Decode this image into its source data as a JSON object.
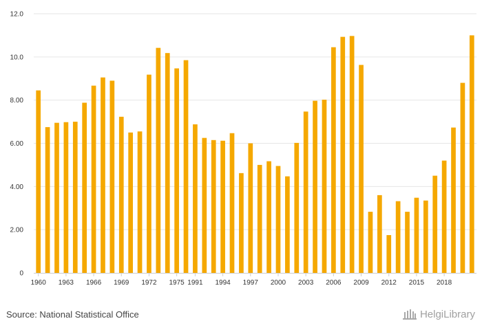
{
  "chart_data": {
    "type": "bar",
    "title": "",
    "xlabel": "",
    "ylabel": "",
    "ylim": [
      0,
      12
    ],
    "y_ticks": [
      "0",
      "2.00",
      "4.00",
      "6.00",
      "8.00",
      "10.0",
      "12.0"
    ],
    "x_tick_labels": [
      "1960",
      "1963",
      "1966",
      "1969",
      "1972",
      "1975",
      "1991",
      "1994",
      "1997",
      "2000",
      "2003",
      "2006",
      "2009",
      "2012",
      "2015",
      "2018"
    ],
    "x_tick_category_index": [
      0,
      3,
      6,
      9,
      12,
      15,
      17,
      20,
      23,
      26,
      29,
      32,
      35,
      38,
      41,
      44
    ],
    "values": [
      8.45,
      6.75,
      6.95,
      6.98,
      7.0,
      7.88,
      8.67,
      9.05,
      8.9,
      7.23,
      6.5,
      6.55,
      9.18,
      10.42,
      10.18,
      9.47,
      9.85,
      6.88,
      6.25,
      6.15,
      6.12,
      6.47,
      4.62,
      6.0,
      5.0,
      5.17,
      4.95,
      4.47,
      6.02,
      7.47,
      7.97,
      8.02,
      10.45,
      10.93,
      10.97,
      9.63,
      2.83,
      3.6,
      1.75,
      3.32,
      2.83,
      3.48,
      3.35,
      4.5,
      5.2,
      6.73,
      8.8,
      11.0
    ],
    "bar_color": "#f5a800",
    "grid": true,
    "legend": "none"
  },
  "footer": {
    "source": "Source: National Statistical Office",
    "logo_text": "HelgiLibrary"
  }
}
